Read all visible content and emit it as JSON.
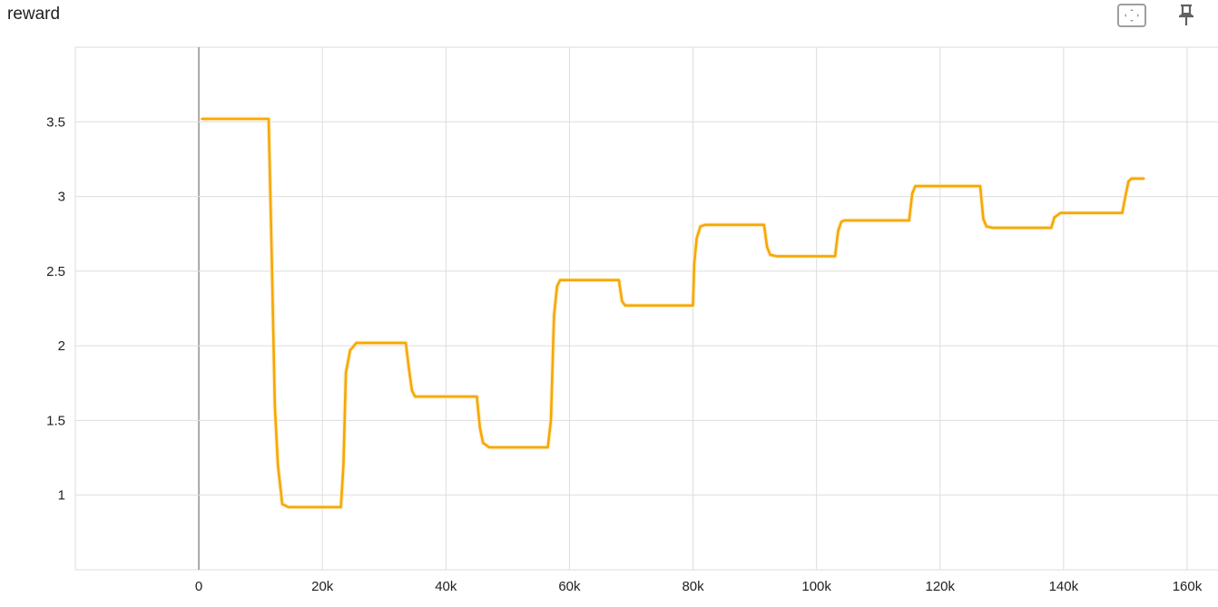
{
  "header": {
    "title": "reward",
    "icons": [
      "fit-domain-icon",
      "pin-icon"
    ]
  },
  "chart_data": {
    "type": "line",
    "title": "reward",
    "xlabel": "",
    "ylabel": "",
    "xlim": [
      -20000,
      165000
    ],
    "ylim": [
      0.5,
      4.0
    ],
    "grid": true,
    "x_ticks": [
      0,
      20000,
      40000,
      60000,
      80000,
      100000,
      120000,
      140000,
      160000
    ],
    "x_tick_labels": [
      "0",
      "20k",
      "40k",
      "60k",
      "80k",
      "100k",
      "120k",
      "140k",
      "160k"
    ],
    "y_ticks": [
      1,
      1.5,
      2,
      2.5,
      3,
      3.5
    ],
    "y_tick_labels": [
      "1",
      "1.5",
      "2",
      "2.5",
      "3",
      "3.5"
    ],
    "colors": {
      "line": "#f5a800",
      "raw": "#fde8c0",
      "grid": "#dddddd",
      "zero_axis": "#a8a8a8"
    },
    "series": [
      {
        "x": [
          500,
          11300,
          11800,
          12300,
          12800,
          13500,
          14500,
          23000,
          23400,
          23800,
          24500,
          25500,
          26500,
          33500,
          34000,
          34500,
          35000,
          36000,
          45000,
          45500,
          46000,
          47000,
          56500,
          57000,
          57500,
          58000,
          58500,
          59500,
          68000,
          68500,
          69000,
          80000,
          80200,
          80600,
          81200,
          82000,
          91500,
          92000,
          92500,
          93500,
          103000,
          103500,
          104000,
          104500,
          115000,
          115500,
          116000,
          126500,
          127000,
          127500,
          128500,
          138000,
          138500,
          139500,
          149500,
          150000,
          150500,
          151000,
          152000,
          153000
        ],
        "y": [
          3.52,
          3.52,
          2.6,
          1.6,
          1.2,
          0.94,
          0.92,
          0.92,
          1.2,
          1.82,
          1.97,
          2.02,
          2.02,
          2.02,
          1.85,
          1.7,
          1.66,
          1.66,
          1.66,
          1.45,
          1.35,
          1.32,
          1.32,
          1.5,
          2.2,
          2.4,
          2.44,
          2.44,
          2.44,
          2.3,
          2.27,
          2.27,
          2.55,
          2.72,
          2.8,
          2.81,
          2.81,
          2.66,
          2.61,
          2.6,
          2.6,
          2.77,
          2.83,
          2.84,
          2.84,
          3.02,
          3.07,
          3.07,
          2.85,
          2.8,
          2.79,
          2.79,
          2.86,
          2.89,
          2.89,
          3.0,
          3.1,
          3.12,
          3.12,
          3.12
        ]
      }
    ]
  }
}
